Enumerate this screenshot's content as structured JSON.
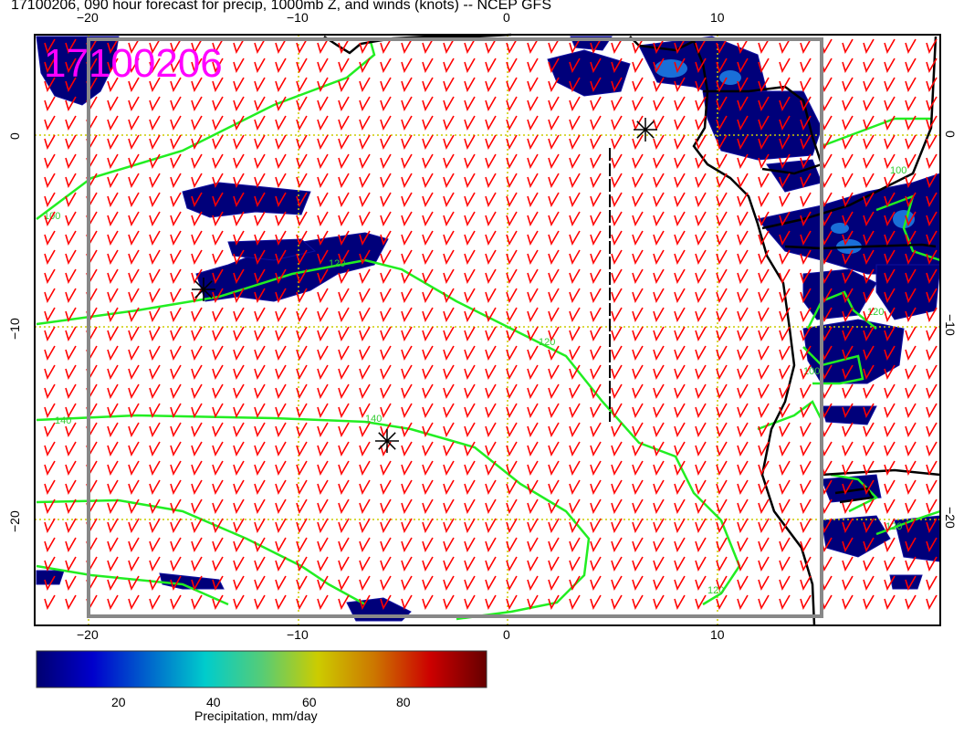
{
  "title": "17100206, 090 hour forecast for precip, 1000mb Z, and winds (knots) -- NCEP GFS",
  "stamp": "17100206",
  "x_ticks": [
    "−20",
    "−10",
    "0",
    "10"
  ],
  "y_ticks": [
    "0",
    "−10",
    "−20"
  ],
  "contour_labels": [
    "100",
    "120",
    "120",
    "140",
    "140",
    "120",
    "100",
    "120",
    "100",
    "120"
  ],
  "colors": {
    "contour": "#22ee22",
    "wind": "#ff0000",
    "coast": "#000000",
    "grid": "#cccc00",
    "stamp": "#ff00ff"
  },
  "colorbar": {
    "label": "Precipitation, mm/day",
    "ticks": [
      "20",
      "40",
      "60",
      "80"
    ],
    "range": [
      2,
      96
    ],
    "colormap": [
      "#000070",
      "#0000cc",
      "#0066cc",
      "#00cccc",
      "#55cc77",
      "#cccc00",
      "#cc7700",
      "#cc0000",
      "#660000"
    ]
  }
}
